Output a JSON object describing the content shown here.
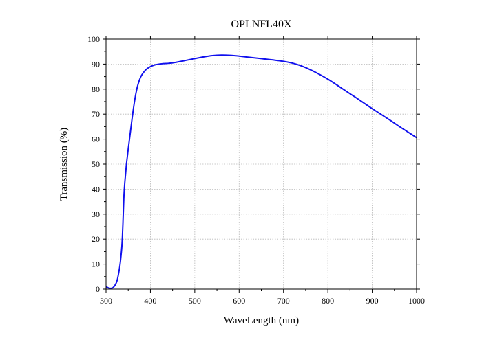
{
  "chart_data": {
    "type": "line",
    "title": "OPLNFL40X",
    "xlabel": "WaveLength (nm)",
    "ylabel": "Transmission (%)",
    "xlim": [
      300,
      1000
    ],
    "ylim": [
      0,
      100
    ],
    "xticks": [
      300,
      400,
      500,
      600,
      700,
      800,
      900,
      1000
    ],
    "yticks": [
      0,
      10,
      20,
      30,
      40,
      50,
      60,
      70,
      80,
      90,
      100
    ],
    "grid": true,
    "line_color": "#1010ee",
    "series": [
      {
        "x": [
          300,
          305,
          310,
          315,
          320,
          325,
          330,
          333,
          336,
          338,
          340,
          342,
          344,
          346,
          348,
          350,
          355,
          360,
          365,
          370,
          375,
          380,
          390,
          400,
          410,
          420,
          430,
          440,
          450,
          460,
          480,
          500,
          520,
          540,
          560,
          580,
          600,
          620,
          650,
          680,
          700,
          720,
          740,
          760,
          780,
          800,
          820,
          840,
          860,
          880,
          900,
          920,
          940,
          960,
          980,
          1000
        ],
        "y": [
          1.0,
          0.5,
          0.3,
          0.5,
          1.5,
          3.5,
          8,
          12,
          18,
          26,
          36,
          42,
          46,
          50,
          53,
          56,
          63,
          70,
          76,
          80.5,
          83.5,
          85.5,
          87.8,
          89.0,
          89.7,
          90.0,
          90.2,
          90.3,
          90.5,
          90.8,
          91.5,
          92.2,
          92.9,
          93.4,
          93.6,
          93.5,
          93.2,
          92.8,
          92.2,
          91.6,
          91.1,
          90.4,
          89.3,
          87.8,
          86.0,
          84.0,
          81.7,
          79.3,
          77.0,
          74.6,
          72.2,
          69.9,
          67.6,
          65.2,
          62.9,
          60.6
        ]
      }
    ]
  }
}
